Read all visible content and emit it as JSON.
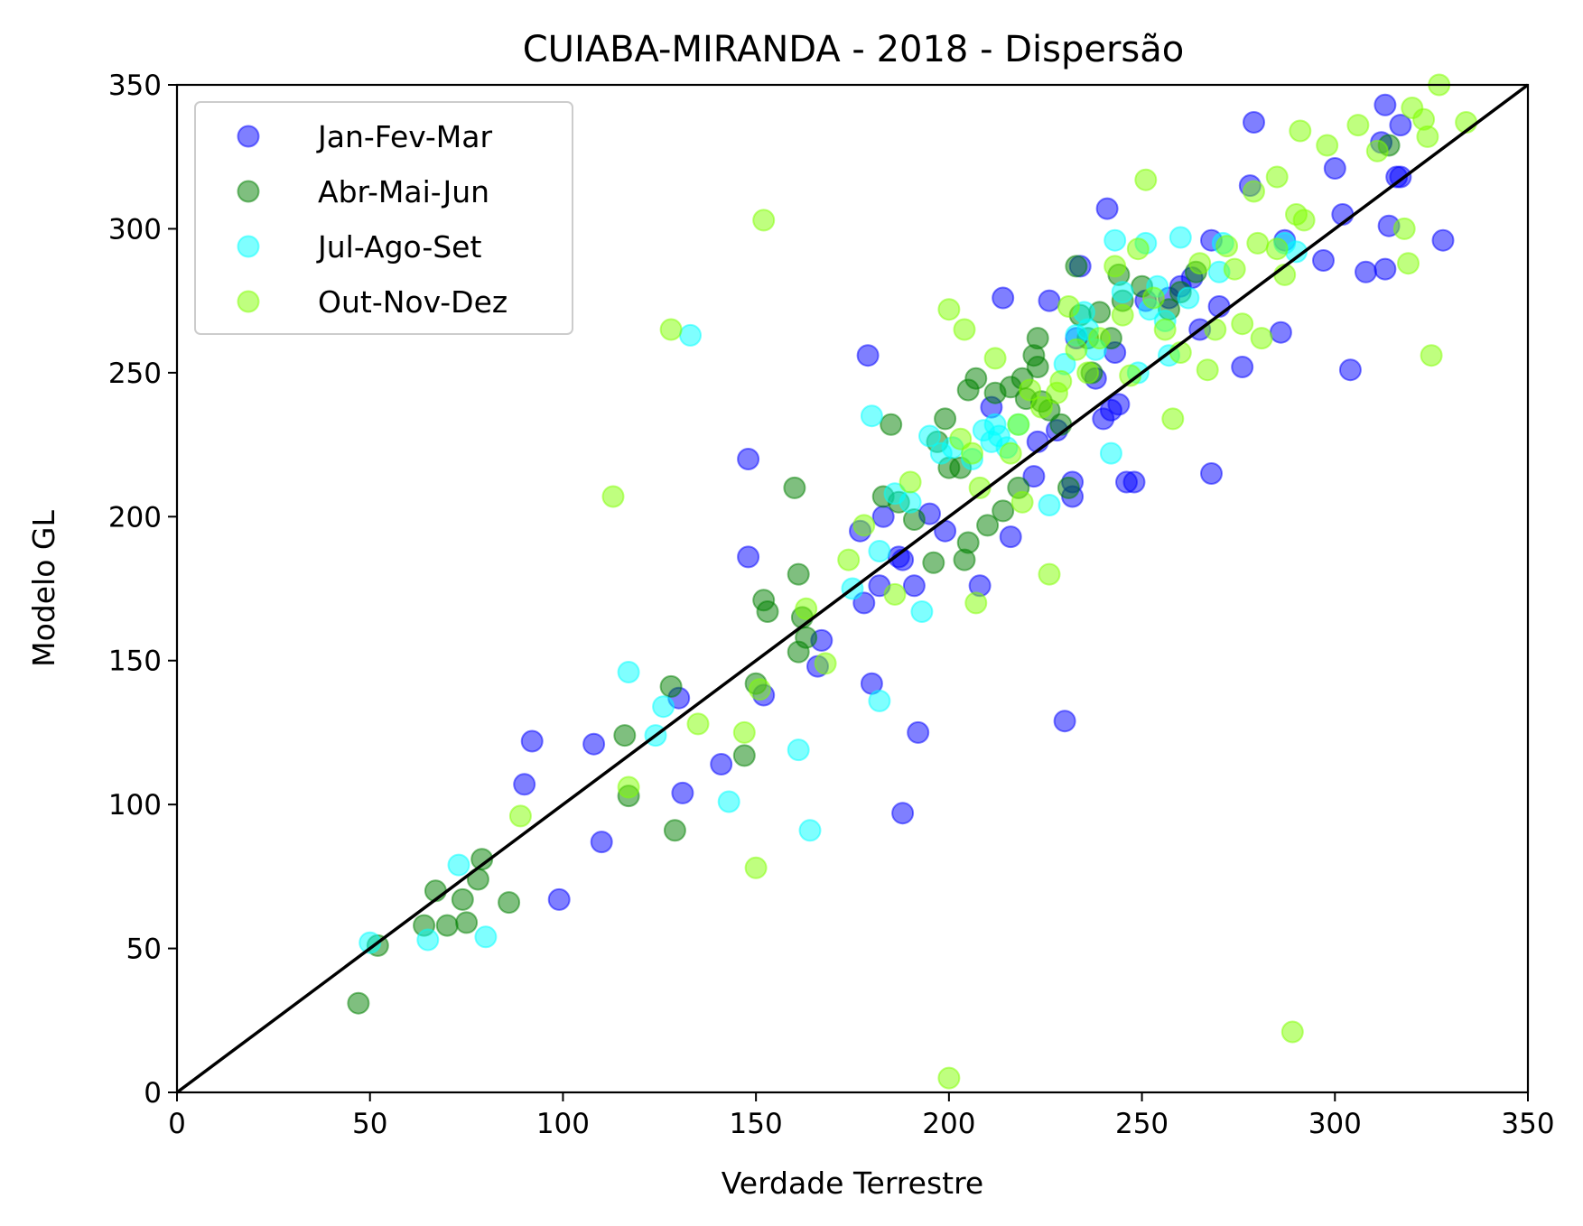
{
  "chart_data": {
    "type": "scatter",
    "title": "CUIABA-MIRANDA - 2018 - Dispersão",
    "xlabel": "Verdade Terrestre",
    "ylabel": "Modelo GL",
    "xlim": [
      0,
      350
    ],
    "ylim": [
      0,
      350
    ],
    "xticks": [
      "0",
      "50",
      "100",
      "150",
      "200",
      "250",
      "300",
      "350"
    ],
    "yticks": [
      "0",
      "50",
      "100",
      "150",
      "200",
      "250",
      "300",
      "350"
    ],
    "grid": false,
    "legend_position": "upper-left",
    "reference_line": {
      "name": "y = x",
      "from": [
        0,
        0
      ],
      "to": [
        350,
        350
      ],
      "color": "#000000"
    },
    "series": [
      {
        "name": "Jan-Fev-Mar",
        "color": "#0000ff",
        "points": [
          [
            92,
            122
          ],
          [
            90,
            107
          ],
          [
            99,
            67
          ],
          [
            108,
            121
          ],
          [
            110,
            87
          ],
          [
            131,
            104
          ],
          [
            130,
            137
          ],
          [
            141,
            114
          ],
          [
            148,
            220
          ],
          [
            148,
            186
          ],
          [
            152,
            138
          ],
          [
            167,
            157
          ],
          [
            166,
            148
          ],
          [
            177,
            195
          ],
          [
            179,
            256
          ],
          [
            178,
            170
          ],
          [
            180,
            142
          ],
          [
            182,
            176
          ],
          [
            183,
            200
          ],
          [
            187,
            186
          ],
          [
            188,
            97
          ],
          [
            188,
            185
          ],
          [
            192,
            125
          ],
          [
            191,
            176
          ],
          [
            195,
            201
          ],
          [
            199,
            195
          ],
          [
            208,
            176
          ],
          [
            211,
            238
          ],
          [
            214,
            276
          ],
          [
            216,
            193
          ],
          [
            222,
            214
          ],
          [
            223,
            226
          ],
          [
            226,
            275
          ],
          [
            228,
            230
          ],
          [
            230,
            129
          ],
          [
            232,
            207
          ],
          [
            232,
            212
          ],
          [
            233,
            262
          ],
          [
            234,
            287
          ],
          [
            238,
            248
          ],
          [
            240,
            234
          ],
          [
            241,
            307
          ],
          [
            242,
            237
          ],
          [
            243,
            257
          ],
          [
            244,
            239
          ],
          [
            246,
            212
          ],
          [
            248,
            212
          ],
          [
            251,
            275
          ],
          [
            257,
            276
          ],
          [
            260,
            280
          ],
          [
            263,
            283
          ],
          [
            265,
            265
          ],
          [
            268,
            296
          ],
          [
            268,
            215
          ],
          [
            270,
            273
          ],
          [
            276,
            252
          ],
          [
            278,
            315
          ],
          [
            279,
            337
          ],
          [
            286,
            264
          ],
          [
            287,
            296
          ],
          [
            297,
            289
          ],
          [
            300,
            321
          ],
          [
            302,
            305
          ],
          [
            308,
            285
          ],
          [
            312,
            330
          ],
          [
            313,
            343
          ],
          [
            313,
            286
          ],
          [
            314,
            301
          ],
          [
            316,
            318
          ],
          [
            317,
            336
          ],
          [
            317,
            318
          ],
          [
            304,
            251
          ],
          [
            328,
            296
          ]
        ]
      },
      {
        "name": "Abr-Mai-Jun",
        "color": "#008000",
        "points": [
          [
            47,
            31
          ],
          [
            52,
            51
          ],
          [
            64,
            58
          ],
          [
            67,
            70
          ],
          [
            70,
            58
          ],
          [
            74,
            67
          ],
          [
            75,
            59
          ],
          [
            78,
            74
          ],
          [
            79,
            81
          ],
          [
            86,
            66
          ],
          [
            116,
            124
          ],
          [
            117,
            103
          ],
          [
            128,
            141
          ],
          [
            129,
            91
          ],
          [
            147,
            117
          ],
          [
            150,
            142
          ],
          [
            152,
            171
          ],
          [
            153,
            167
          ],
          [
            160,
            210
          ],
          [
            161,
            180
          ],
          [
            161,
            153
          ],
          [
            162,
            165
          ],
          [
            163,
            158
          ],
          [
            183,
            207
          ],
          [
            185,
            232
          ],
          [
            187,
            205
          ],
          [
            191,
            199
          ],
          [
            196,
            184
          ],
          [
            197,
            226
          ],
          [
            199,
            234
          ],
          [
            200,
            217
          ],
          [
            203,
            217
          ],
          [
            204,
            185
          ],
          [
            205,
            191
          ],
          [
            205,
            244
          ],
          [
            207,
            248
          ],
          [
            210,
            197
          ],
          [
            212,
            243
          ],
          [
            214,
            202
          ],
          [
            216,
            245
          ],
          [
            218,
            210
          ],
          [
            219,
            248
          ],
          [
            220,
            241
          ],
          [
            222,
            256
          ],
          [
            223,
            252
          ],
          [
            223,
            262
          ],
          [
            224,
            240
          ],
          [
            226,
            237
          ],
          [
            229,
            232
          ],
          [
            231,
            210
          ],
          [
            233,
            287
          ],
          [
            234,
            270
          ],
          [
            236,
            262
          ],
          [
            237,
            250
          ],
          [
            239,
            271
          ],
          [
            242,
            262
          ],
          [
            244,
            284
          ],
          [
            245,
            275
          ],
          [
            250,
            280
          ],
          [
            257,
            272
          ],
          [
            260,
            278
          ],
          [
            264,
            285
          ],
          [
            314,
            329
          ]
        ]
      },
      {
        "name": "Jul-Ago-Set",
        "color": "#00ffff",
        "points": [
          [
            50,
            52
          ],
          [
            65,
            53
          ],
          [
            73,
            79
          ],
          [
            80,
            54
          ],
          [
            117,
            146
          ],
          [
            124,
            124
          ],
          [
            126,
            134
          ],
          [
            133,
            263
          ],
          [
            143,
            101
          ],
          [
            161,
            119
          ],
          [
            164,
            91
          ],
          [
            175,
            175
          ],
          [
            180,
            235
          ],
          [
            182,
            136
          ],
          [
            182,
            188
          ],
          [
            186,
            208
          ],
          [
            190,
            205
          ],
          [
            193,
            167
          ],
          [
            195,
            228
          ],
          [
            198,
            222
          ],
          [
            201,
            224
          ],
          [
            206,
            220
          ],
          [
            209,
            230
          ],
          [
            211,
            226
          ],
          [
            212,
            232
          ],
          [
            213,
            228
          ],
          [
            215,
            224
          ],
          [
            218,
            232
          ],
          [
            226,
            204
          ],
          [
            230,
            253
          ],
          [
            233,
            263
          ],
          [
            235,
            271
          ],
          [
            236,
            265
          ],
          [
            238,
            258
          ],
          [
            242,
            222
          ],
          [
            243,
            296
          ],
          [
            245,
            278
          ],
          [
            249,
            250
          ],
          [
            251,
            295
          ],
          [
            252,
            272
          ],
          [
            254,
            280
          ],
          [
            256,
            268
          ],
          [
            260,
            297
          ],
          [
            262,
            276
          ],
          [
            270,
            285
          ],
          [
            271,
            295
          ],
          [
            287,
            295
          ],
          [
            290,
            292
          ],
          [
            257,
            256
          ]
        ]
      },
      {
        "name": "Out-Nov-Dez",
        "color": "#7fff00",
        "points": [
          [
            89,
            96
          ],
          [
            113,
            207
          ],
          [
            117,
            106
          ],
          [
            128,
            265
          ],
          [
            135,
            128
          ],
          [
            147,
            125
          ],
          [
            150,
            78
          ],
          [
            151,
            140
          ],
          [
            152,
            303
          ],
          [
            163,
            168
          ],
          [
            168,
            149
          ],
          [
            174,
            185
          ],
          [
            178,
            197
          ],
          [
            186,
            173
          ],
          [
            190,
            212
          ],
          [
            200,
            272
          ],
          [
            200,
            5
          ],
          [
            203,
            227
          ],
          [
            204,
            265
          ],
          [
            206,
            222
          ],
          [
            207,
            170
          ],
          [
            208,
            210
          ],
          [
            212,
            255
          ],
          [
            216,
            222
          ],
          [
            218,
            232
          ],
          [
            219,
            205
          ],
          [
            221,
            244
          ],
          [
            224,
            238
          ],
          [
            226,
            180
          ],
          [
            228,
            243
          ],
          [
            229,
            247
          ],
          [
            231,
            273
          ],
          [
            233,
            258
          ],
          [
            236,
            250
          ],
          [
            239,
            262
          ],
          [
            243,
            287
          ],
          [
            245,
            270
          ],
          [
            247,
            249
          ],
          [
            249,
            293
          ],
          [
            251,
            317
          ],
          [
            253,
            276
          ],
          [
            256,
            265
          ],
          [
            258,
            234
          ],
          [
            260,
            257
          ],
          [
            265,
            288
          ],
          [
            267,
            251
          ],
          [
            269,
            265
          ],
          [
            272,
            294
          ],
          [
            274,
            286
          ],
          [
            276,
            267
          ],
          [
            279,
            313
          ],
          [
            280,
            295
          ],
          [
            281,
            262
          ],
          [
            285,
            293
          ],
          [
            285,
            318
          ],
          [
            287,
            284
          ],
          [
            289,
            21
          ],
          [
            290,
            305
          ],
          [
            291,
            334
          ],
          [
            292,
            303
          ],
          [
            298,
            329
          ],
          [
            306,
            336
          ],
          [
            311,
            327
          ],
          [
            318,
            300
          ],
          [
            319,
            288
          ],
          [
            320,
            342
          ],
          [
            323,
            338
          ],
          [
            324,
            332
          ],
          [
            325,
            256
          ],
          [
            327,
            350
          ],
          [
            334,
            337
          ]
        ]
      }
    ]
  }
}
